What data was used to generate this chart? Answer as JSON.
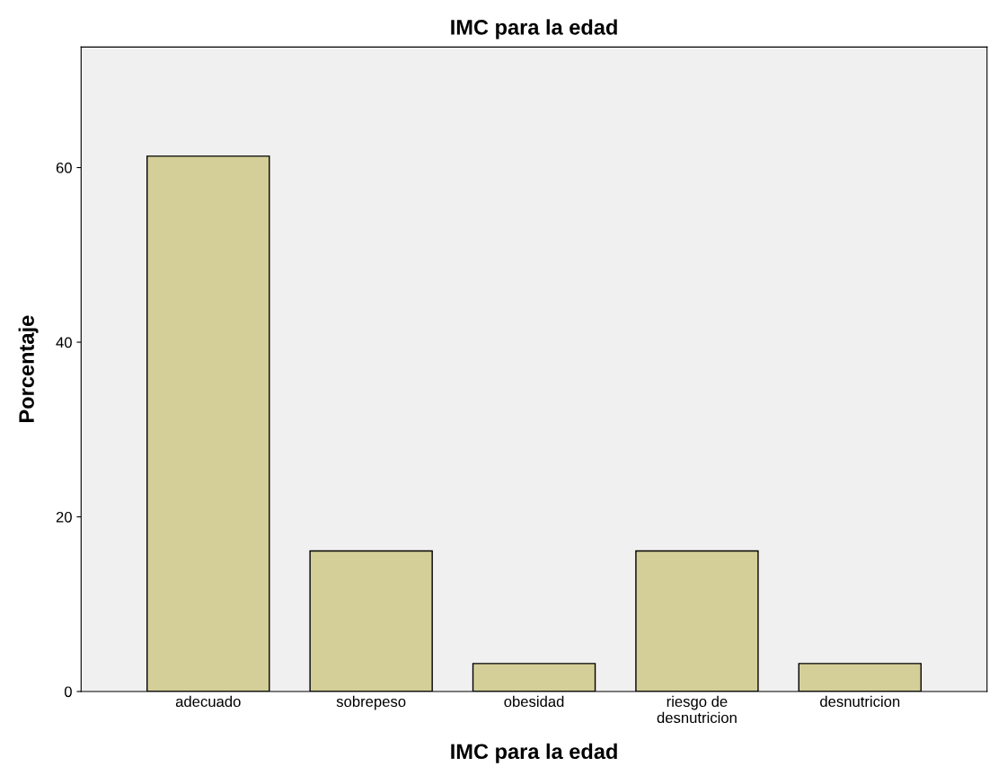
{
  "chart_data": {
    "type": "bar",
    "title": "IMC para la edad",
    "xlabel": "IMC para la edad",
    "ylabel": "Porcentaje",
    "categories": [
      "adecuado",
      "sobrepeso",
      "obesidad",
      "riesgo de\ndesnutricion",
      "desnutricion"
    ],
    "values": [
      61.3,
      16.1,
      3.2,
      16.1,
      3.2
    ],
    "color": "#d4cf98",
    "ylim": [
      0,
      73.8
    ],
    "yticks": [
      0,
      20,
      40,
      60
    ],
    "grid": false
  }
}
